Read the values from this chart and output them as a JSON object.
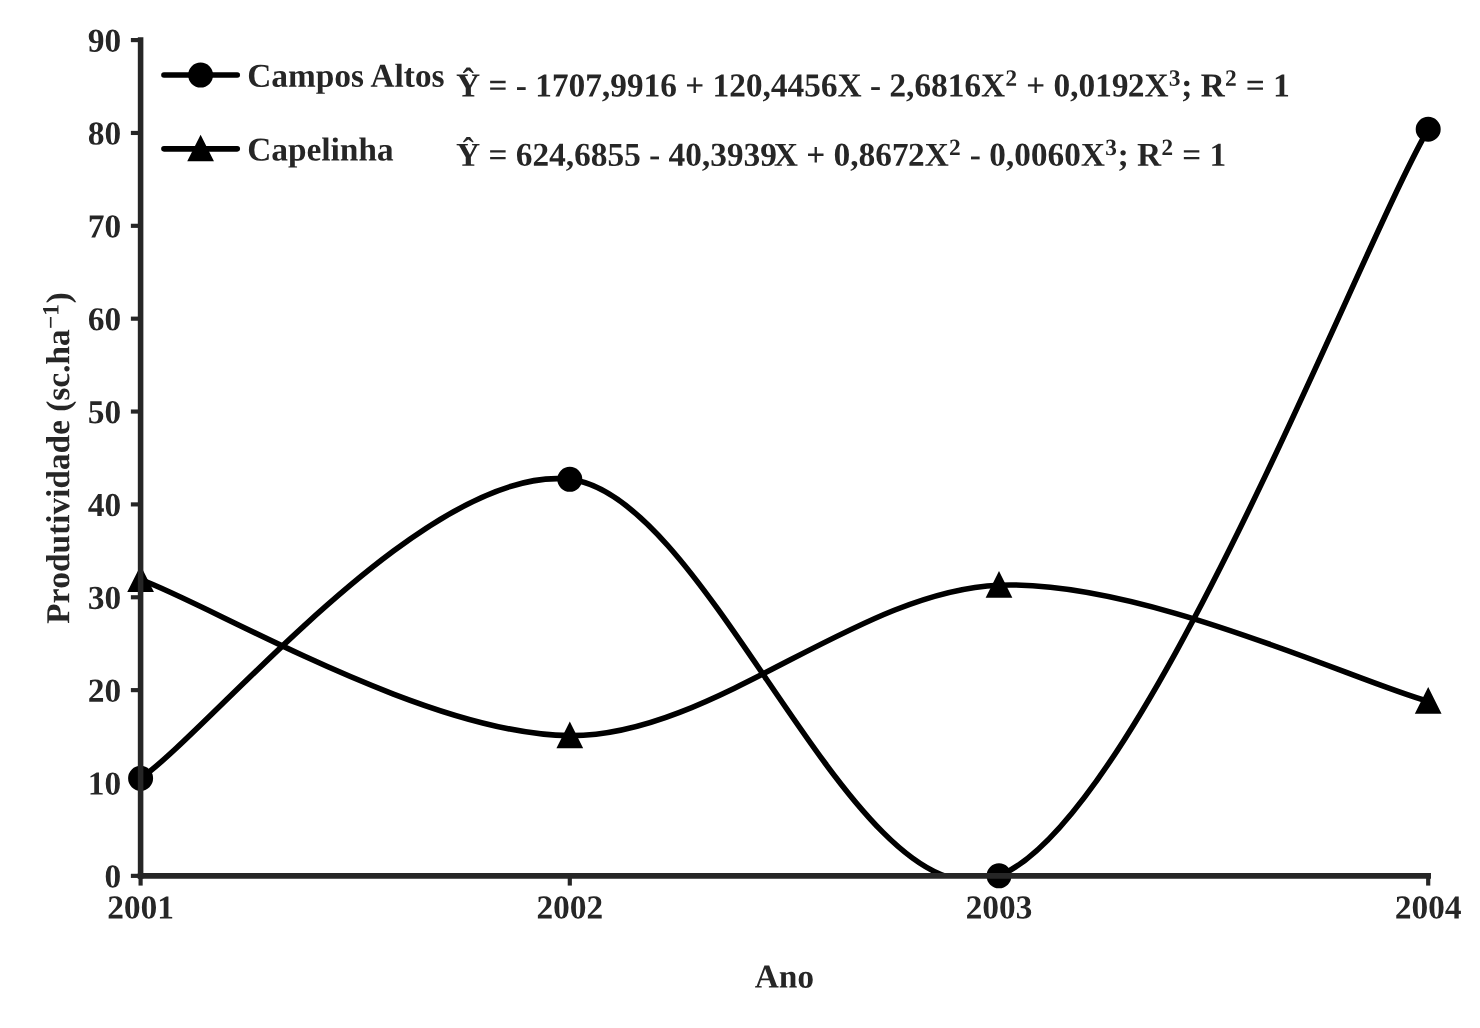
{
  "chart_data": {
    "type": "line",
    "xlabel": "Ano",
    "ylabel": "Produtividade (sc.ha$^{−1}$)",
    "x": [
      2001,
      2002,
      2003,
      2004
    ],
    "series": [
      {
        "name": "Campos Altos",
        "color": "#000000",
        "marker": "circle",
        "values": [
          10.5,
          42.7,
          0,
          80.4
        ]
      },
      {
        "name": "Capelinha",
        "color": "#000000",
        "marker": "triangle",
        "values": [
          31.9,
          15.1,
          31.3,
          18.8
        ]
      }
    ],
    "annotations": [
      "Ŷ = - 1707,9916 + 120,4456X - 2,6816X$^{2}$ + 0,0192X$^{3}$; R$^{2}$ = 1",
      "Ŷ = 624,6855 - 40,3939X + 0,8672X$^{2}$ - 0,0060X$^{3}$; R$^{2}$ = 1"
    ],
    "xlim": [
      2001,
      2004
    ],
    "xticks": [
      2001,
      2002,
      2003,
      2004
    ],
    "ylim": [
      0,
      90
    ],
    "yticks": [
      0,
      10,
      20,
      30,
      40,
      50,
      60,
      70,
      80,
      90
    ],
    "grid": false,
    "legend": "top left"
  }
}
